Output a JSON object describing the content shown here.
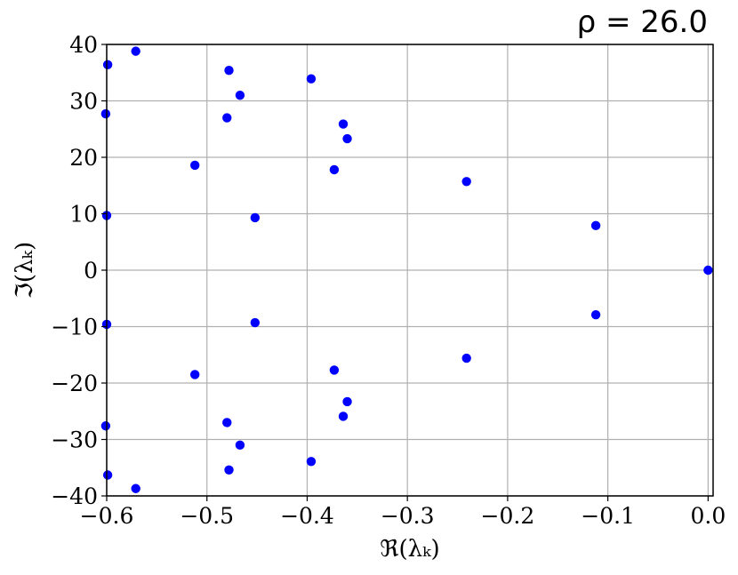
{
  "chart_data": {
    "type": "scatter",
    "title": "ρ = 26.0",
    "xlabel": "ℜ(λₖ)",
    "ylabel": "ℑ(λₖ)",
    "xlim": [
      -0.6,
      0.005
    ],
    "ylim": [
      -40,
      40
    ],
    "grid": true,
    "marker_color": "#0000ff",
    "xticks": [
      -0.6,
      -0.5,
      -0.4,
      -0.3,
      -0.2,
      -0.1,
      0.0
    ],
    "xtick_labels": [
      "−0.6",
      "−0.5",
      "−0.4",
      "−0.3",
      "−0.2",
      "−0.1",
      "0.0"
    ],
    "yticks": [
      -40,
      -30,
      -20,
      -10,
      0,
      10,
      20,
      30,
      40
    ],
    "ytick_labels": [
      "−40",
      "−30",
      "−20",
      "−10",
      "0",
      "10",
      "20",
      "30",
      "40"
    ],
    "x": [
      0.0,
      -0.112,
      -0.112,
      -0.241,
      -0.241,
      -0.36,
      -0.36,
      -0.364,
      -0.364,
      -0.373,
      -0.373,
      -0.396,
      -0.396,
      -0.452,
      -0.452,
      -0.467,
      -0.467,
      -0.478,
      -0.478,
      -0.48,
      -0.48,
      -0.512,
      -0.512,
      -0.571,
      -0.571,
      -0.599,
      -0.599,
      -0.6,
      -0.6,
      -0.601,
      -0.601
    ],
    "y": [
      0.0,
      7.9,
      -7.9,
      15.7,
      -15.6,
      23.3,
      -23.3,
      25.9,
      -25.9,
      17.8,
      -17.7,
      33.9,
      -33.9,
      9.3,
      -9.3,
      31.0,
      -31.0,
      35.4,
      -35.4,
      27.0,
      -27.0,
      18.6,
      -18.5,
      38.8,
      -38.7,
      36.4,
      -36.3,
      9.7,
      -9.6,
      27.7,
      -27.6
    ]
  }
}
